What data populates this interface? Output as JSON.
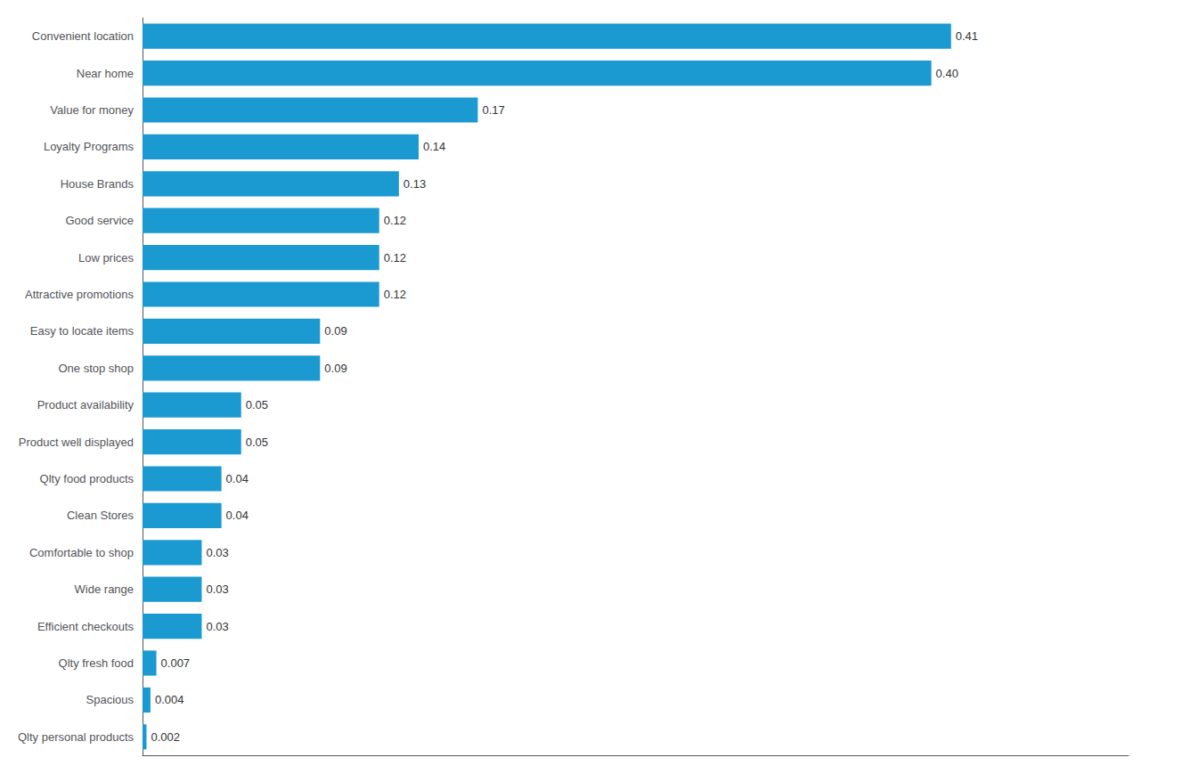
{
  "chart_data": {
    "type": "bar",
    "orientation": "horizontal",
    "categories": [
      "Convenient location",
      "Near home",
      "Value for money",
      "Loyalty Programs",
      "House Brands",
      "Good service",
      "Low prices",
      "Attractive promotions",
      "Easy to locate items",
      "One stop shop",
      "Product availability",
      "Product well displayed",
      "Qlty food products",
      "Clean Stores",
      "Comfortable to shop",
      "Wide range",
      "Efficient checkouts",
      "Qlty fresh food",
      "Spacious",
      "Qlty personal products"
    ],
    "values": [
      0.41,
      0.4,
      0.17,
      0.14,
      0.13,
      0.12,
      0.12,
      0.12,
      0.09,
      0.09,
      0.05,
      0.05,
      0.04,
      0.04,
      0.03,
      0.03,
      0.03,
      0.007,
      0.004,
      0.002
    ],
    "value_labels": [
      "0.41",
      "0.40",
      "0.17",
      "0.14",
      "0.13",
      "0.12",
      "0.12",
      "0.12",
      "0.09",
      "0.09",
      "0.05",
      "0.05",
      "0.04",
      "0.04",
      "0.03",
      "0.03",
      "0.03",
      "0.007",
      "0.004",
      "0.002"
    ],
    "data_labels": true,
    "color": "#1B9AD2",
    "xlim": [
      0,
      0.5
    ],
    "xticks": [],
    "tick_labels": "y",
    "grid": false
  }
}
